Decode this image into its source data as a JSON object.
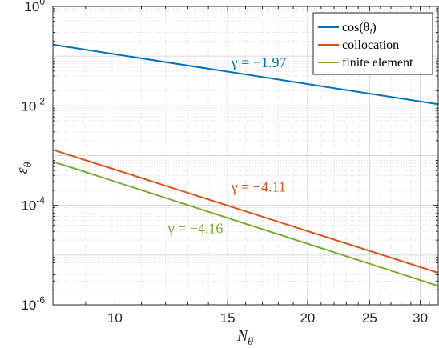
{
  "chart_data": {
    "type": "line",
    "xscale": "log",
    "yscale": "log",
    "xlabel": "N_θ",
    "ylabel": "ε̄_θ",
    "xlim": [
      8,
      32
    ],
    "ylim": [
      1e-06,
      1
    ],
    "x_ticks": [
      10,
      15,
      20,
      25,
      30
    ],
    "x_tick_labels": [
      "10",
      "15",
      "20",
      "25",
      "30"
    ],
    "y_ticks": [
      1e-06,
      0.0001,
      0.01,
      1
    ],
    "y_tick_labels": [
      {
        "base": "10",
        "exp": "-6"
      },
      {
        "base": "10",
        "exp": "-4"
      },
      {
        "base": "10",
        "exp": "-2"
      },
      {
        "base": "10",
        "exp": "0"
      }
    ],
    "grid": true,
    "minor_grid": true,
    "legend_position": "top-right",
    "series": [
      {
        "name": "cos(θ_i)",
        "color": "#0072BD",
        "x": [
          8,
          32
        ],
        "y": [
          0.17,
          0.0108
        ]
      },
      {
        "name": "collocation",
        "color": "#D95319",
        "x": [
          8,
          32
        ],
        "y": [
          0.00131,
          4.4e-06
        ]
      },
      {
        "name": "finite element",
        "color": "#77AC30",
        "x": [
          8,
          32
        ],
        "y": [
          0.00076,
          2.4e-06
        ]
      }
    ],
    "annotations": [
      {
        "text": "γ = −1.97",
        "color": "#0072BD",
        "x": 15.2,
        "y": 0.06
      },
      {
        "text": "γ = −4.11",
        "color": "#D95319",
        "x": 15.2,
        "y": 0.00019
      },
      {
        "text": "γ = −4.16",
        "color": "#77AC30",
        "x": 12.1,
        "y": 2.75e-05
      }
    ]
  }
}
